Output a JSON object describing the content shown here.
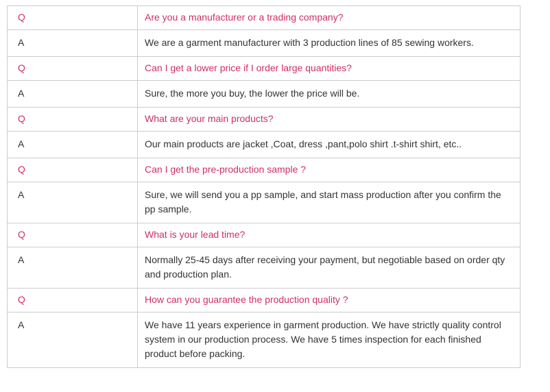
{
  "theme": {
    "question_color": "#d02e63",
    "answer_color": "#333333",
    "border_color": "#cccccc",
    "background_color": "#ffffff"
  },
  "faq": {
    "rows": [
      {
        "label": "Q",
        "type": "question",
        "text": "Are you a manufacturer or a trading company?"
      },
      {
        "label": "A",
        "type": "answer",
        "text": "We are a garment manufacturer with 3 production lines of 85 sewing workers."
      },
      {
        "label": "Q",
        "type": "question",
        "text": "Can I get a lower price if I order large quantities?"
      },
      {
        "label": "A",
        "type": "answer",
        "text": "Sure, the more you buy, the lower the price will be."
      },
      {
        "label": "Q",
        "type": "question",
        "text": "What are your main products?"
      },
      {
        "label": "A",
        "type": "answer",
        "text": "Our main products are  jacket ,Coat, dress ,pant,polo shirt .t-shirt shirt, etc.."
      },
      {
        "label": "Q",
        "type": "question",
        "text": "Can I get the pre-production sample ?"
      },
      {
        "label": "A",
        "type": "answer",
        "text": "Sure, we will send you a pp sample, and start mass production after you confirm the pp sample."
      },
      {
        "label": "Q",
        "type": "question",
        "text": "What is your lead time?"
      },
      {
        "label": "A",
        "type": "answer",
        "text": "Normally 25-45 days after receiving your payment, but negotiable based on order qty and production plan."
      },
      {
        "label": "Q",
        "type": "question",
        "text": "How can you guarantee the production quality ?"
      },
      {
        "label": "A",
        "type": "answer",
        "text": "We have 11 years experience in garment production. We have strictly quality control system in our production process. We have 5 times inspection for each finished product before packing."
      }
    ]
  }
}
